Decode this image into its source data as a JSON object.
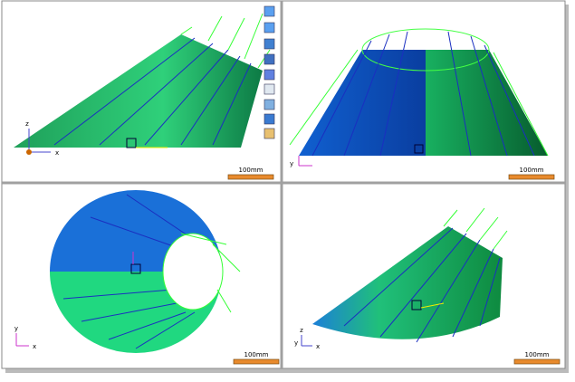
{
  "viewports": [
    {
      "axis_labels": [
        "z",
        "x"
      ],
      "scale_label": "100mm"
    },
    {
      "axis_labels": [
        "y"
      ],
      "scale_label": "100mm"
    },
    {
      "axis_labels": [
        "y",
        "x"
      ],
      "scale_label": "100mm"
    },
    {
      "axis_labels": [
        "z",
        "y",
        "x"
      ],
      "scale_label": "100mm"
    }
  ]
}
